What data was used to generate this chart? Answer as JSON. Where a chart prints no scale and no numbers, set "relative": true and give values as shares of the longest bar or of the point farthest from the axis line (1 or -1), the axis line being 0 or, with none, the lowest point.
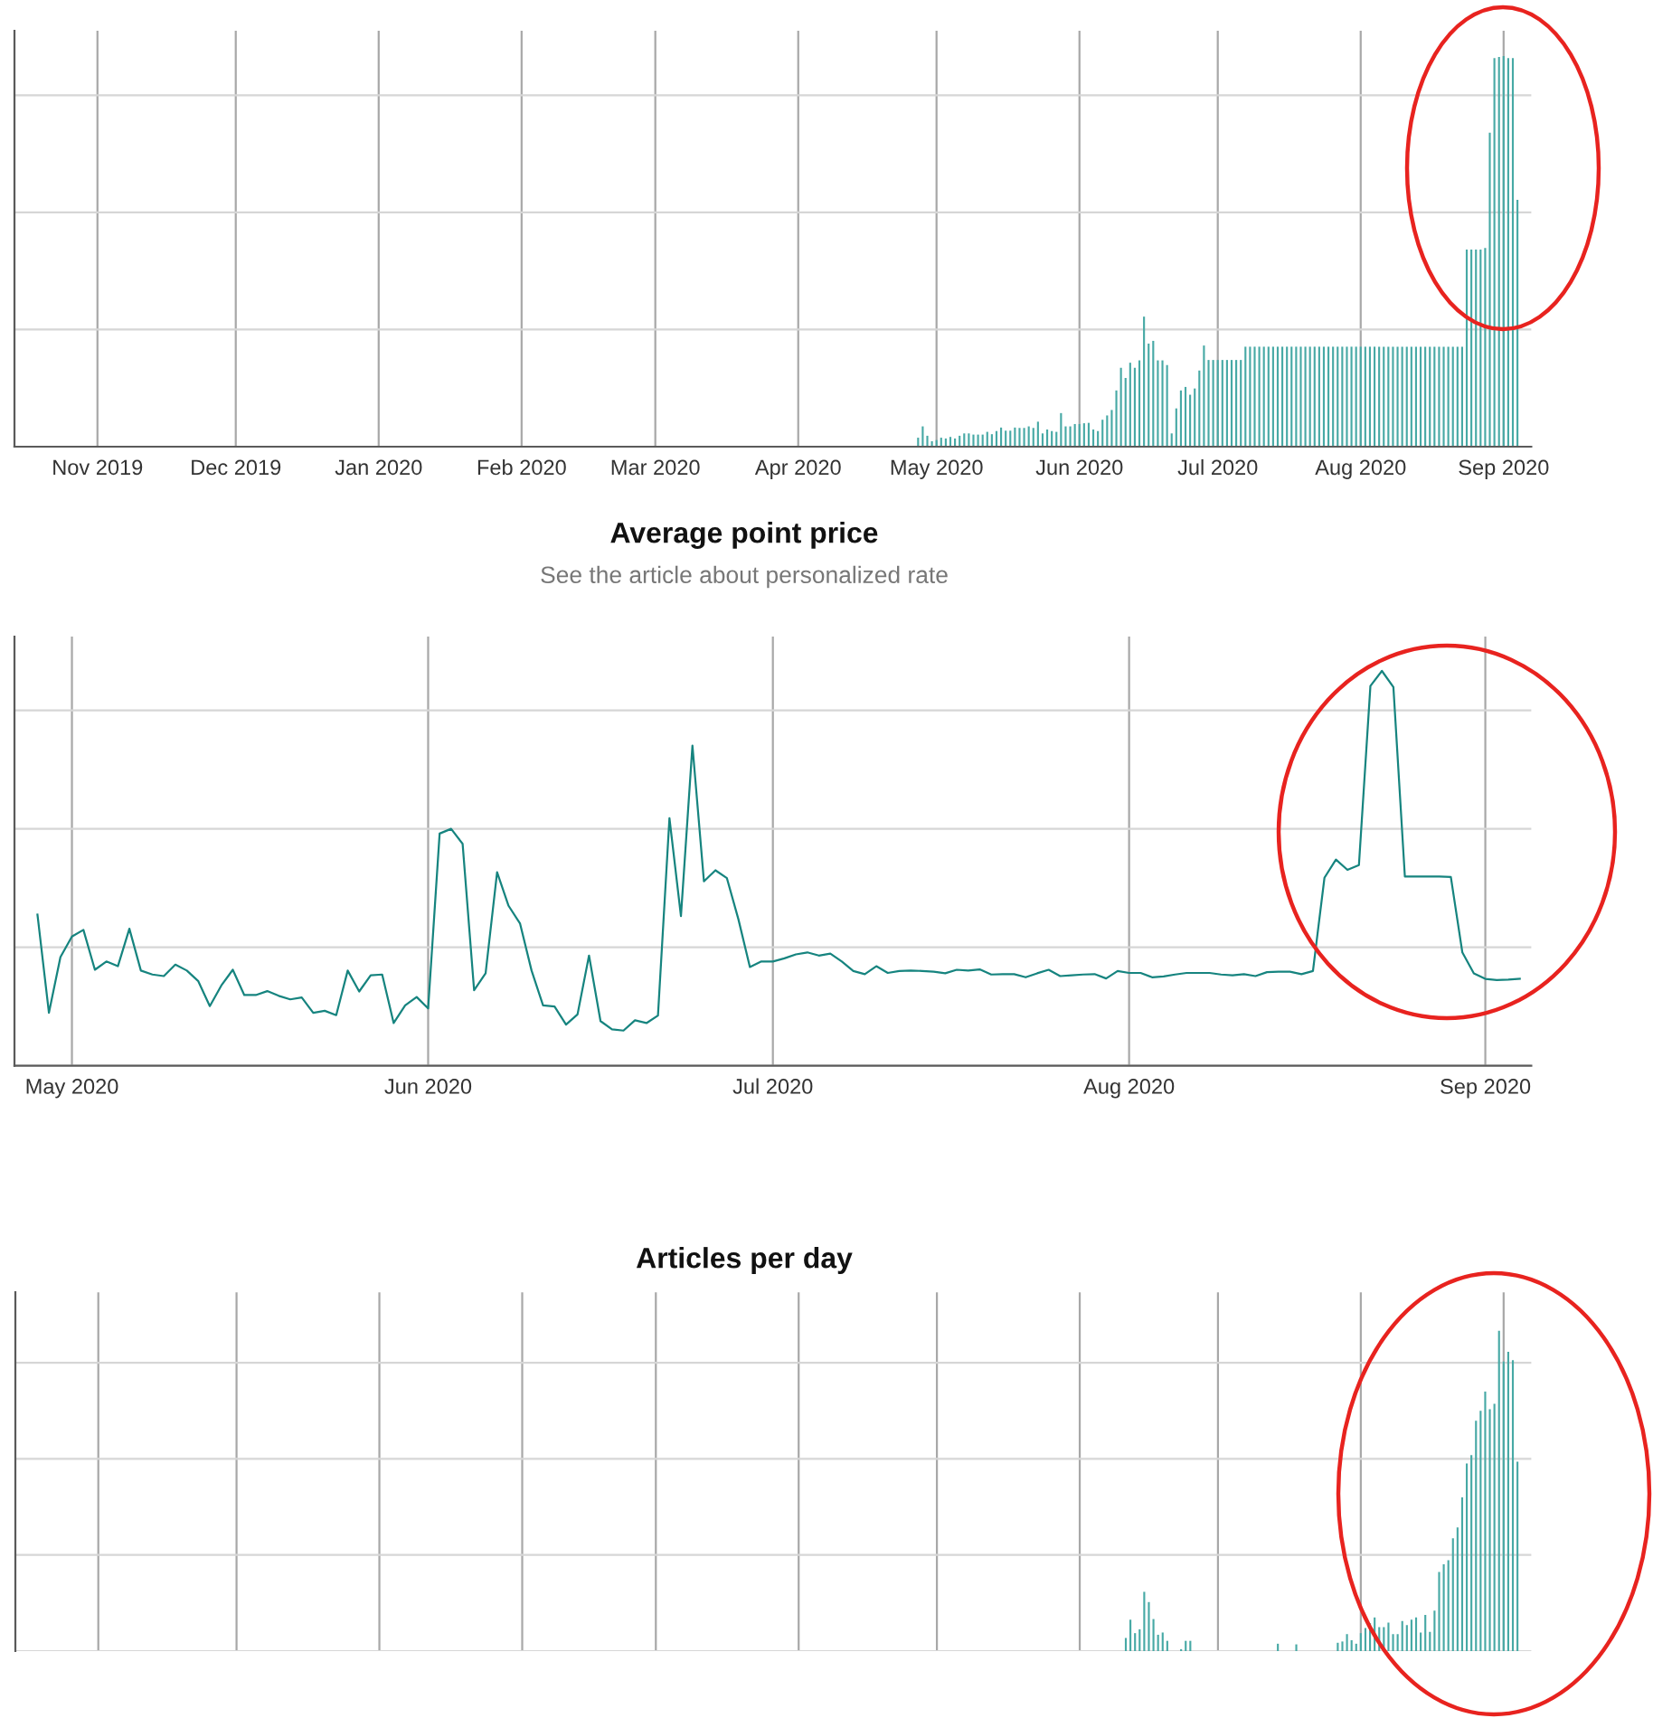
{
  "chart_data": [
    {
      "type": "bar",
      "relative": true,
      "color": "#47a9a5",
      "grid": true,
      "xlim": [
        "2019-10-14",
        "2020-09-07"
      ],
      "xticks": [
        {
          "value": "2019-11-01",
          "label": "Nov 2019"
        },
        {
          "value": "2019-12-01",
          "label": "Dec 2019"
        },
        {
          "value": "2020-01-01",
          "label": "Jan 2020"
        },
        {
          "value": "2020-02-01",
          "label": "Feb 2020"
        },
        {
          "value": "2020-03-01",
          "label": "Mar 2020"
        },
        {
          "value": "2020-04-01",
          "label": "Apr 2020"
        },
        {
          "value": "2020-05-01",
          "label": "May 2020"
        },
        {
          "value": "2020-06-01",
          "label": "Jun 2020"
        },
        {
          "value": "2020-07-01",
          "label": "Jul 2020"
        },
        {
          "value": "2020-08-01",
          "label": "Aug 2020"
        },
        {
          "value": "2020-09-01",
          "label": "Sep 2020"
        }
      ],
      "x": [
        "2020-04-27",
        "2020-04-28",
        "2020-04-29",
        "2020-04-30",
        "2020-05-01",
        "2020-05-02",
        "2020-05-03",
        "2020-05-04",
        "2020-05-05",
        "2020-05-06",
        "2020-05-07",
        "2020-05-08",
        "2020-05-09",
        "2020-05-10",
        "2020-05-11",
        "2020-05-12",
        "2020-05-13",
        "2020-05-14",
        "2020-05-15",
        "2020-05-16",
        "2020-05-17",
        "2020-05-18",
        "2020-05-19",
        "2020-05-20",
        "2020-05-21",
        "2020-05-22",
        "2020-05-23",
        "2020-05-24",
        "2020-05-25",
        "2020-05-26",
        "2020-05-27",
        "2020-05-28",
        "2020-05-29",
        "2020-05-30",
        "2020-05-31",
        "2020-06-01",
        "2020-06-02",
        "2020-06-03",
        "2020-06-04",
        "2020-06-05",
        "2020-06-06",
        "2020-06-07",
        "2020-06-08",
        "2020-06-09",
        "2020-06-10",
        "2020-06-11",
        "2020-06-12",
        "2020-06-13",
        "2020-06-14",
        "2020-06-15",
        "2020-06-16",
        "2020-06-17",
        "2020-06-18",
        "2020-06-19",
        "2020-06-20",
        "2020-06-21",
        "2020-06-22",
        "2020-06-23",
        "2020-06-24",
        "2020-06-25",
        "2020-06-26",
        "2020-06-27",
        "2020-06-28",
        "2020-06-29",
        "2020-06-30",
        "2020-07-01",
        "2020-07-02",
        "2020-07-03",
        "2020-07-04",
        "2020-07-05",
        "2020-07-06",
        "2020-07-07",
        "2020-07-08",
        "2020-07-09",
        "2020-07-10",
        "2020-07-11",
        "2020-07-12",
        "2020-07-13",
        "2020-07-14",
        "2020-07-15",
        "2020-07-16",
        "2020-07-17",
        "2020-07-18",
        "2020-07-19",
        "2020-07-20",
        "2020-07-21",
        "2020-07-22",
        "2020-07-23",
        "2020-07-24",
        "2020-07-25",
        "2020-07-26",
        "2020-07-27",
        "2020-07-28",
        "2020-07-29",
        "2020-07-30",
        "2020-07-31",
        "2020-08-01",
        "2020-08-02",
        "2020-08-03",
        "2020-08-04",
        "2020-08-05",
        "2020-08-06",
        "2020-08-07",
        "2020-08-08",
        "2020-08-09",
        "2020-08-10",
        "2020-08-11",
        "2020-08-12",
        "2020-08-13",
        "2020-08-14",
        "2020-08-15",
        "2020-08-16",
        "2020-08-17",
        "2020-08-18",
        "2020-08-19",
        "2020-08-20",
        "2020-08-21",
        "2020-08-22",
        "2020-08-23",
        "2020-08-24",
        "2020-08-25",
        "2020-08-26",
        "2020-08-27",
        "2020-08-28",
        "2020-08-29",
        "2020-08-30",
        "2020-08-31",
        "2020-09-01",
        "2020-09-02",
        "2020-09-03",
        "2020-09-04"
      ],
      "values": [
        0.023,
        0.052,
        0.028,
        0.014,
        0.017,
        0.023,
        0.021,
        0.025,
        0.021,
        0.028,
        0.034,
        0.034,
        0.031,
        0.031,
        0.031,
        0.038,
        0.032,
        0.04,
        0.049,
        0.041,
        0.041,
        0.049,
        0.048,
        0.048,
        0.052,
        0.048,
        0.064,
        0.034,
        0.044,
        0.04,
        0.038,
        0.086,
        0.052,
        0.052,
        0.058,
        0.058,
        0.06,
        0.061,
        0.044,
        0.04,
        0.069,
        0.08,
        0.094,
        0.144,
        0.202,
        0.176,
        0.215,
        0.202,
        0.221,
        0.333,
        0.264,
        0.271,
        0.221,
        0.221,
        0.209,
        0.034,
        0.098,
        0.144,
        0.153,
        0.133,
        0.149,
        0.195,
        0.259,
        0.222,
        0.222,
        0.222,
        0.222,
        0.222,
        0.222,
        0.222,
        0.222,
        0.256,
        0.256,
        0.256,
        0.256,
        0.256,
        0.256,
        0.256,
        0.256,
        0.256,
        0.256,
        0.256,
        0.256,
        0.256,
        0.256,
        0.256,
        0.256,
        0.256,
        0.256,
        0.256,
        0.256,
        0.256,
        0.256,
        0.256,
        0.256,
        0.256,
        0.256,
        0.256,
        0.256,
        0.256,
        0.256,
        0.256,
        0.256,
        0.256,
        0.256,
        0.256,
        0.256,
        0.256,
        0.256,
        0.256,
        0.256,
        0.256,
        0.256,
        0.256,
        0.256,
        0.256,
        0.256,
        0.256,
        0.256,
        0.505,
        0.505,
        0.505,
        0.505,
        0.509,
        0.804,
        0.995,
        0.998,
        1,
        0.995,
        0.995,
        0.632
      ]
    },
    {
      "type": "line",
      "title": "Average point price",
      "subtitle": "See the article about personalized rate",
      "relative": true,
      "color": "#16847f",
      "grid": true,
      "xlim": [
        "2020-04-26",
        "2020-09-05"
      ],
      "xticks": [
        {
          "value": "2020-05-01",
          "label": "May 2020"
        },
        {
          "value": "2020-06-01",
          "label": "Jun 2020"
        },
        {
          "value": "2020-07-01",
          "label": "Jul 2020"
        },
        {
          "value": "2020-08-01",
          "label": "Aug 2020"
        },
        {
          "value": "2020-09-01",
          "label": "Sep 2020"
        }
      ],
      "x": [
        "2020-04-28",
        "2020-04-29",
        "2020-04-30",
        "2020-05-01",
        "2020-05-02",
        "2020-05-03",
        "2020-05-04",
        "2020-05-05",
        "2020-05-06",
        "2020-05-07",
        "2020-05-08",
        "2020-05-09",
        "2020-05-10",
        "2020-05-11",
        "2020-05-12",
        "2020-05-13",
        "2020-05-14",
        "2020-05-15",
        "2020-05-16",
        "2020-05-17",
        "2020-05-18",
        "2020-05-19",
        "2020-05-20",
        "2020-05-21",
        "2020-05-22",
        "2020-05-23",
        "2020-05-24",
        "2020-05-25",
        "2020-05-26",
        "2020-05-27",
        "2020-05-28",
        "2020-05-29",
        "2020-05-30",
        "2020-05-31",
        "2020-06-01",
        "2020-06-02",
        "2020-06-03",
        "2020-06-04",
        "2020-06-05",
        "2020-06-06",
        "2020-06-07",
        "2020-06-08",
        "2020-06-09",
        "2020-06-10",
        "2020-06-11",
        "2020-06-12",
        "2020-06-13",
        "2020-06-14",
        "2020-06-15",
        "2020-06-16",
        "2020-06-17",
        "2020-06-18",
        "2020-06-19",
        "2020-06-20",
        "2020-06-21",
        "2020-06-22",
        "2020-06-23",
        "2020-06-24",
        "2020-06-25",
        "2020-06-26",
        "2020-06-27",
        "2020-06-28",
        "2020-06-29",
        "2020-06-30",
        "2020-07-01",
        "2020-07-02",
        "2020-07-03",
        "2020-07-04",
        "2020-07-05",
        "2020-07-06",
        "2020-07-07",
        "2020-07-08",
        "2020-07-09",
        "2020-07-10",
        "2020-07-11",
        "2020-07-12",
        "2020-07-13",
        "2020-07-14",
        "2020-07-15",
        "2020-07-16",
        "2020-07-17",
        "2020-07-18",
        "2020-07-19",
        "2020-07-20",
        "2020-07-21",
        "2020-07-22",
        "2020-07-23",
        "2020-07-24",
        "2020-07-25",
        "2020-07-26",
        "2020-07-27",
        "2020-07-28",
        "2020-07-29",
        "2020-07-30",
        "2020-07-31",
        "2020-08-01",
        "2020-08-02",
        "2020-08-03",
        "2020-08-04",
        "2020-08-05",
        "2020-08-06",
        "2020-08-07",
        "2020-08-08",
        "2020-08-09",
        "2020-08-10",
        "2020-08-11",
        "2020-08-12",
        "2020-08-13",
        "2020-08-14",
        "2020-08-15",
        "2020-08-16",
        "2020-08-17",
        "2020-08-18",
        "2020-08-19",
        "2020-08-20",
        "2020-08-21",
        "2020-08-22",
        "2020-08-23",
        "2020-08-24",
        "2020-08-25",
        "2020-08-26",
        "2020-08-27",
        "2020-08-28",
        "2020-08-29",
        "2020-08-30",
        "2020-08-31",
        "2020-09-01",
        "2020-09-02",
        "2020-09-03",
        "2020-09-04"
      ],
      "values": [
        0.383,
        0.134,
        0.275,
        0.327,
        0.344,
        0.243,
        0.264,
        0.252,
        0.347,
        0.241,
        0.231,
        0.227,
        0.256,
        0.241,
        0.214,
        0.151,
        0.203,
        0.243,
        0.179,
        0.179,
        0.189,
        0.177,
        0.168,
        0.173,
        0.134,
        0.139,
        0.128,
        0.241,
        0.188,
        0.229,
        0.231,
        0.108,
        0.153,
        0.174,
        0.145,
        0.588,
        0.6,
        0.562,
        0.191,
        0.234,
        0.49,
        0.405,
        0.36,
        0.241,
        0.153,
        0.15,
        0.104,
        0.13,
        0.279,
        0.113,
        0.092,
        0.089,
        0.115,
        0.108,
        0.127,
        0.627,
        0.379,
        0.811,
        0.467,
        0.495,
        0.475,
        0.371,
        0.25,
        0.264,
        0.264,
        0.272,
        0.282,
        0.287,
        0.279,
        0.284,
        0.264,
        0.24,
        0.232,
        0.252,
        0.235,
        0.24,
        0.241,
        0.24,
        0.238,
        0.234,
        0.243,
        0.241,
        0.244,
        0.231,
        0.232,
        0.232,
        0.224,
        0.234,
        0.243,
        0.227,
        0.229,
        0.231,
        0.232,
        0.221,
        0.24,
        0.235,
        0.235,
        0.224,
        0.226,
        0.231,
        0.235,
        0.235,
        0.235,
        0.231,
        0.229,
        0.232,
        0.227,
        0.237,
        0.238,
        0.238,
        0.232,
        0.24,
        0.476,
        0.522,
        0.496,
        0.508,
        0.962,
        1,
        0.959,
        0.479,
        0.479,
        0.479,
        0.479,
        0.478,
        0.287,
        0.234,
        0.22,
        0.217,
        0.218,
        0.22
      ]
    },
    {
      "type": "bar",
      "title": "Articles per day",
      "relative": true,
      "color": "#47a9a5",
      "grid": true,
      "tick_labels": false,
      "xlim": [
        "2019-10-14",
        "2020-09-07"
      ],
      "xticks": [
        {
          "value": "2019-11-01",
          "label": null
        },
        {
          "value": "2019-12-01",
          "label": null
        },
        {
          "value": "2020-01-01",
          "label": null
        },
        {
          "value": "2020-02-01",
          "label": null
        },
        {
          "value": "2020-03-01",
          "label": null
        },
        {
          "value": "2020-04-01",
          "label": null
        },
        {
          "value": "2020-05-01",
          "label": null
        },
        {
          "value": "2020-06-01",
          "label": null
        },
        {
          "value": "2020-07-01",
          "label": null
        },
        {
          "value": "2020-08-01",
          "label": null
        },
        {
          "value": "2020-09-01",
          "label": null
        }
      ],
      "x": [
        "2020-06-11",
        "2020-06-12",
        "2020-06-13",
        "2020-06-14",
        "2020-06-15",
        "2020-06-16",
        "2020-06-17",
        "2020-06-18",
        "2020-06-19",
        "2020-06-20",
        "2020-06-23",
        "2020-06-24",
        "2020-06-25",
        "2020-07-14",
        "2020-07-18",
        "2020-07-27",
        "2020-07-28",
        "2020-07-29",
        "2020-07-30",
        "2020-07-31",
        "2020-08-01",
        "2020-08-02",
        "2020-08-03",
        "2020-08-04",
        "2020-08-05",
        "2020-08-06",
        "2020-08-07",
        "2020-08-08",
        "2020-08-09",
        "2020-08-10",
        "2020-08-11",
        "2020-08-12",
        "2020-08-13",
        "2020-08-14",
        "2020-08-15",
        "2020-08-16",
        "2020-08-17",
        "2020-08-18",
        "2020-08-19",
        "2020-08-20",
        "2020-08-21",
        "2020-08-22",
        "2020-08-23",
        "2020-08-24",
        "2020-08-25",
        "2020-08-26",
        "2020-08-27",
        "2020-08-28",
        "2020-08-29",
        "2020-08-30",
        "2020-08-31",
        "2020-09-01",
        "2020-09-02",
        "2020-09-03",
        "2020-09-04"
      ],
      "values": [
        0.041,
        0.098,
        0.056,
        0.068,
        0.185,
        0.153,
        0.1,
        0.051,
        0.058,
        0.032,
        0.006,
        0.032,
        0.032,
        0.023,
        0.021,
        0.026,
        0.03,
        0.053,
        0.034,
        0.023,
        0.056,
        0.072,
        0.087,
        0.105,
        0.075,
        0.075,
        0.089,
        0.053,
        0.053,
        0.094,
        0.081,
        0.098,
        0.105,
        0.058,
        0.113,
        0.06,
        0.126,
        0.247,
        0.271,
        0.284,
        0.352,
        0.386,
        0.48,
        0.586,
        0.612,
        0.719,
        0.75,
        0.81,
        0.755,
        0.772,
        1,
        0.904,
        0.934,
        0.908,
        0.591
      ]
    }
  ]
}
